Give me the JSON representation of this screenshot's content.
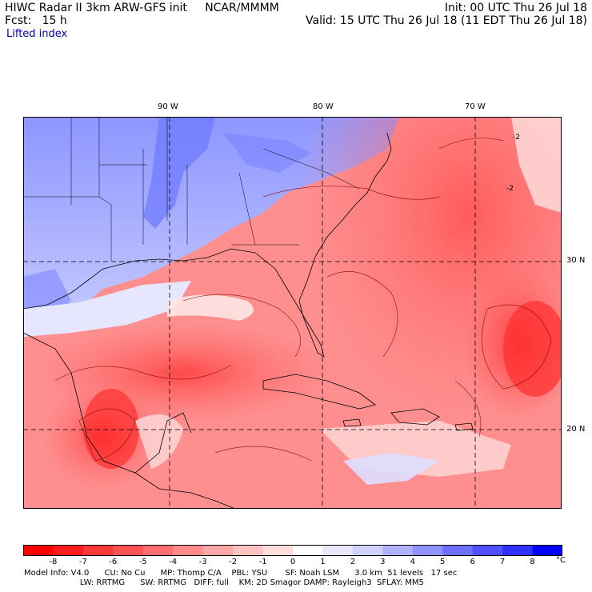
{
  "header": {
    "line1_left": "HIWC Radar II 3km ARW-GFS init",
    "center": "NCAR/MMMM",
    "line1_right": "Init: 00 UTC Thu 26 Jul 18",
    "line2_left": "Fcst:   15 h",
    "line2_right": "Valid: 15 UTC Thu 26 Jul 18 (11 EDT Thu 26 Jul 18)",
    "field": "Lifted index"
  },
  "graticule": {
    "lon_labels": [
      "90 W",
      "80 W",
      "70 W"
    ],
    "lat_labels": [
      "30 N",
      "20 N"
    ]
  },
  "map_annotations": [
    "-2",
    "-2"
  ],
  "colorbar": {
    "ticks": [
      "-8",
      "-7",
      "-6",
      "-5",
      "-4",
      "-3",
      "-2",
      "-1",
      "0",
      "1",
      "2",
      "3",
      "4",
      "5",
      "6",
      "7",
      "8"
    ],
    "unit": "°C",
    "colors": [
      "#ff0000",
      "#ff1c1c",
      "#ff3838",
      "#ff5353",
      "#ff6f6f",
      "#ff8b8b",
      "#ffa6a6",
      "#ffc2c2",
      "#ffdddd",
      "#ffffff",
      "#e8e8ff",
      "#d0d0ff",
      "#b0b0ff",
      "#9090ff",
      "#7070ff",
      "#5050ff",
      "#3030ff",
      "#0000ff"
    ]
  },
  "footer": {
    "line1": "Model Info: V4.0      CU: No Cu      MP: Thomp C/A    PBL: YSU       SF: Noah LSM      3.0 km  51 levels   17 sec",
    "line2": "                      LW: RRTMG      SW: RRTMG   DIFF: full    KM: 2D Smagor DAMP: Rayleigh3  SFLAY: MM5"
  }
}
